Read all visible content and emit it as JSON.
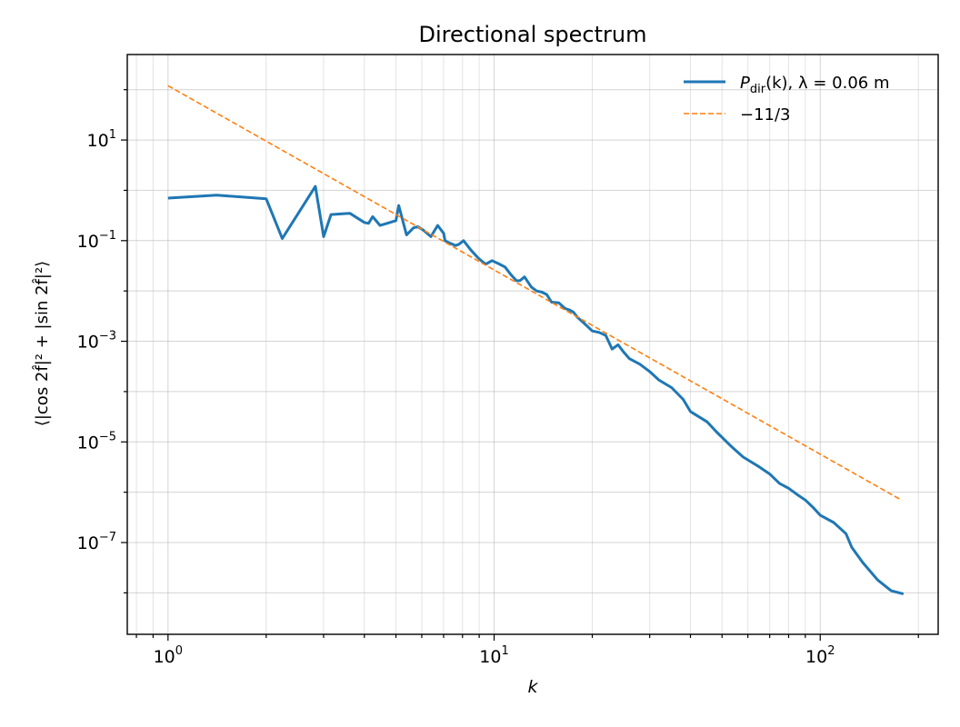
{
  "chart_data": {
    "type": "line",
    "title": "Directional spectrum",
    "xlabel": "k",
    "ylabel": "⟨|cos 2f̂|² + |sin 2f̂|²⟩",
    "xscale": "log",
    "yscale": "log",
    "xlim": [
      0.75,
      230
    ],
    "ylim": [
      1.5e-09,
      500.0
    ],
    "grid": true,
    "legend_position": "top-right",
    "x_ticks": [
      {
        "base": "10",
        "exp": "0",
        "value": 1
      },
      {
        "base": "10",
        "exp": "1",
        "value": 10
      },
      {
        "base": "10",
        "exp": "2",
        "value": 100
      }
    ],
    "y_ticks": [
      {
        "base": "10",
        "exp": "1",
        "value": 10
      },
      {
        "base": "10",
        "exp": "−1",
        "value": 0.1
      },
      {
        "base": "10",
        "exp": "−3",
        "value": 0.001
      },
      {
        "base": "10",
        "exp": "−5",
        "value": 1e-05
      },
      {
        "base": "10",
        "exp": "−7",
        "value": 1e-07
      }
    ],
    "series": [
      {
        "name": "P_dir(k), λ = 0.06 m",
        "legend_main": "P",
        "legend_sub": "dir",
        "legend_rest": "(k), λ = 0.06 m",
        "color": "#1f77b4",
        "style": "solid",
        "x": [
          1,
          1.41,
          2,
          2.24,
          2.83,
          3,
          3.16,
          3.61,
          4,
          4.12,
          4.24,
          4.47,
          5,
          5.1,
          5.39,
          5.66,
          5.83,
          6.08,
          6.4,
          6.71,
          7,
          7.07,
          7.28,
          7.62,
          7.81,
          8.06,
          8.49,
          8.94,
          9.22,
          9.43,
          9.85,
          10.3,
          10.8,
          11.2,
          11.7,
          12,
          12.4,
          13,
          13.5,
          14,
          14.5,
          15,
          15.8,
          16.5,
          17,
          17.5,
          18,
          19,
          20,
          21,
          22,
          23,
          24,
          25,
          26,
          28,
          30,
          32,
          35,
          38,
          40,
          45,
          48,
          53,
          58,
          65,
          70,
          75,
          80,
          85,
          90,
          95,
          100,
          110,
          120,
          125,
          135,
          150,
          165,
          180
        ],
        "y": [
          0.7,
          0.8,
          0.68,
          0.11,
          1.2,
          0.12,
          0.33,
          0.35,
          0.23,
          0.22,
          0.3,
          0.2,
          0.25,
          0.5,
          0.13,
          0.18,
          0.19,
          0.16,
          0.12,
          0.2,
          0.14,
          0.1,
          0.09,
          0.08,
          0.085,
          0.1,
          0.065,
          0.045,
          0.038,
          0.034,
          0.04,
          0.035,
          0.03,
          0.022,
          0.016,
          0.016,
          0.019,
          0.012,
          0.01,
          0.0095,
          0.0085,
          0.006,
          0.0058,
          0.0045,
          0.0042,
          0.0038,
          0.003,
          0.0022,
          0.0016,
          0.0015,
          0.0013,
          0.0007,
          0.00085,
          0.0006,
          0.00045,
          0.00035,
          0.00025,
          0.00017,
          0.00012,
          7e-05,
          4e-05,
          2.5e-05,
          1.6e-05,
          8.5e-06,
          5e-06,
          3.2e-06,
          2.3e-06,
          1.5e-06,
          1.2e-06,
          9e-07,
          7e-07,
          5e-07,
          3.5e-07,
          2.5e-07,
          1.5e-07,
          8e-08,
          4e-08,
          1.8e-08,
          1.1e-08,
          9.5e-09
        ]
      },
      {
        "name": "−11/3",
        "color": "#ff7f0e",
        "style": "dashed",
        "x": [
          1,
          178
        ],
        "y": [
          120,
          6.9e-07
        ]
      }
    ]
  }
}
